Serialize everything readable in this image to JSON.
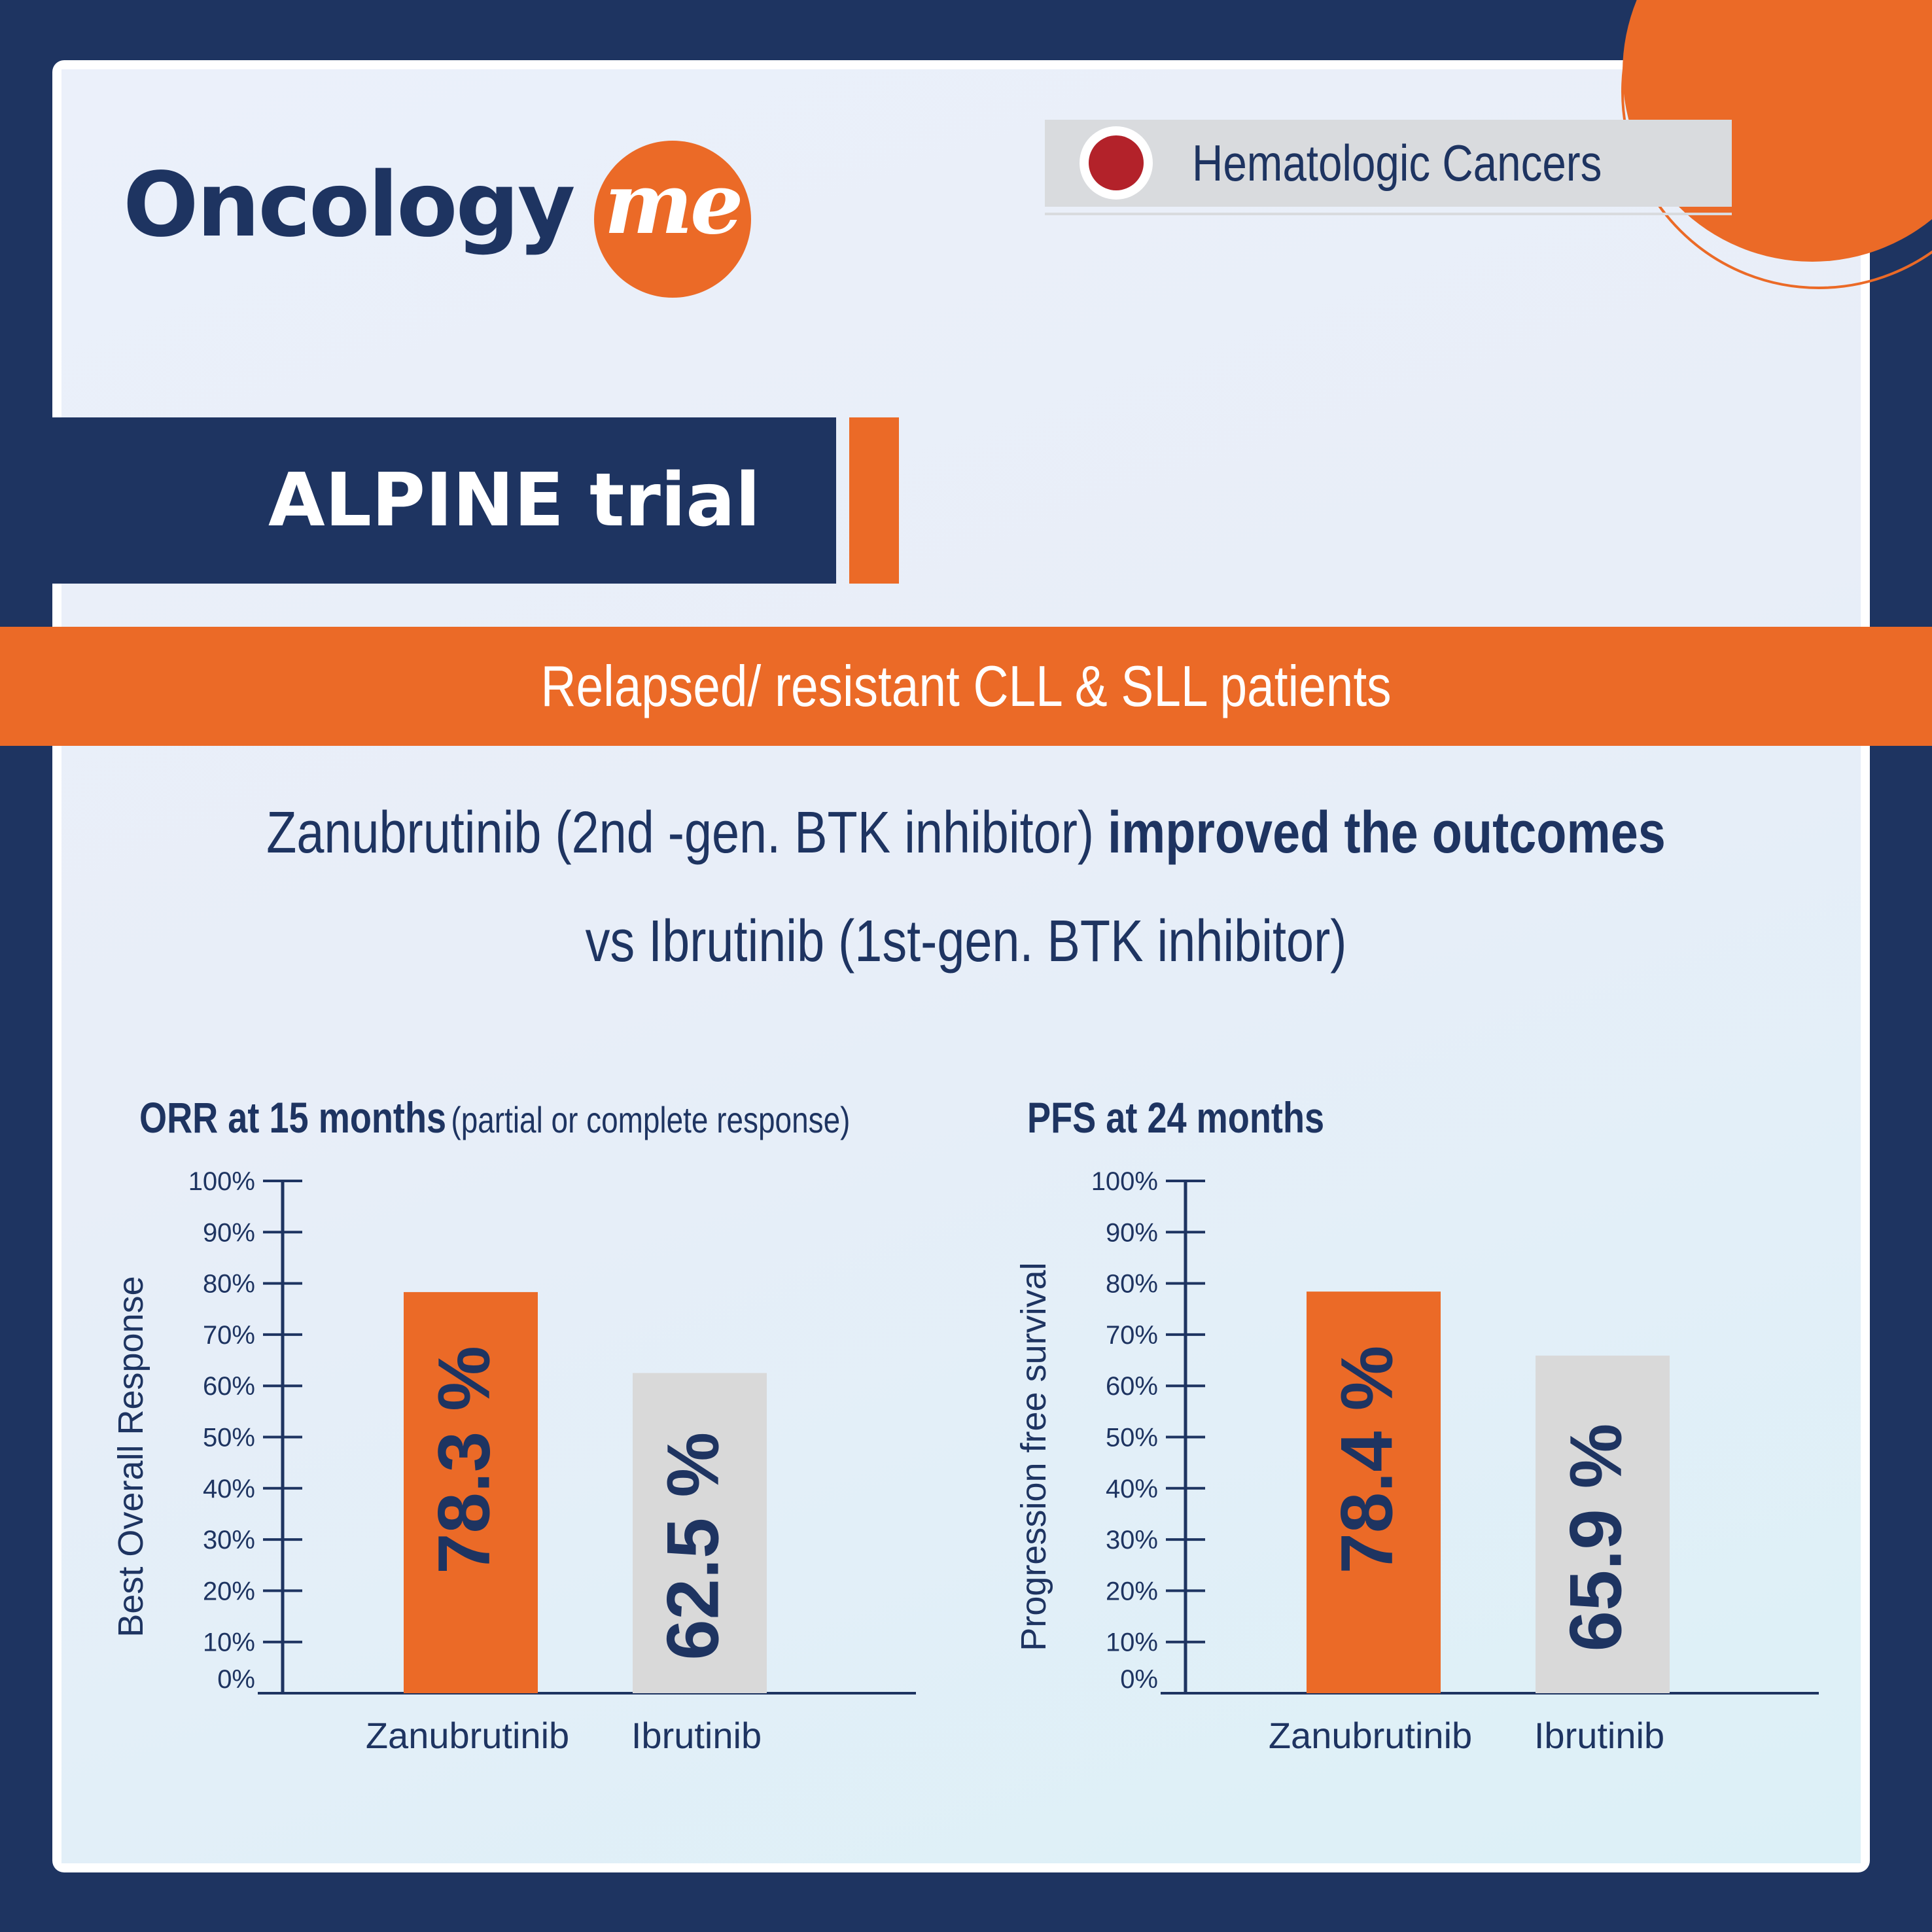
{
  "brand": {
    "logo_text": "Oncology",
    "logo_me": "me",
    "category": "Hematologic Cancers"
  },
  "trial": {
    "title": "ALPINE trial",
    "population": "Relapsed/ resistant CLL & SLL  patients",
    "headline_line1_a": "Zanubrutinib (2nd -gen. BTK inhibitor)  ",
    "headline_line1_b": "improved the outcomes",
    "headline_line2": "vs Ibrutinib (1st-gen. BTK inhibitor)"
  },
  "colors": {
    "navy": "#1e3461",
    "orange": "#eb6a27",
    "grey_bar": "#d9d9d9",
    "red_dot": "#b3222a"
  },
  "chart_data": [
    {
      "type": "bar",
      "title": "ORR at 15 months",
      "subtitle": "(partial or complete response)",
      "ylabel": "Best Overall Response",
      "categories": [
        "Zanubrutinib",
        "Ibrutinib"
      ],
      "values": [
        78.3,
        62.5
      ],
      "value_labels": [
        "78.3 %",
        "62.5 %"
      ],
      "bar_colors": [
        "#eb6a27",
        "#d9d9d9"
      ],
      "yticks": [
        "0%",
        "10%",
        "20%",
        "30%",
        "40%",
        "50%",
        "60%",
        "70%",
        "80%",
        "90%",
        "100%"
      ],
      "ylim": [
        0,
        100
      ],
      "grid": false
    },
    {
      "type": "bar",
      "title": "PFS at 24 months",
      "ylabel": "Progression free survival",
      "categories": [
        "Zanubrutinib",
        "Ibrutinib"
      ],
      "values": [
        78.4,
        65.9
      ],
      "value_labels": [
        "78.4 %",
        "65.9 %"
      ],
      "bar_colors": [
        "#eb6a27",
        "#d9d9d9"
      ],
      "yticks": [
        "0%",
        "10%",
        "20%",
        "30%",
        "40%",
        "50%",
        "60%",
        "70%",
        "80%",
        "90%",
        "100%"
      ],
      "ylim": [
        0,
        100
      ],
      "grid": false
    }
  ]
}
